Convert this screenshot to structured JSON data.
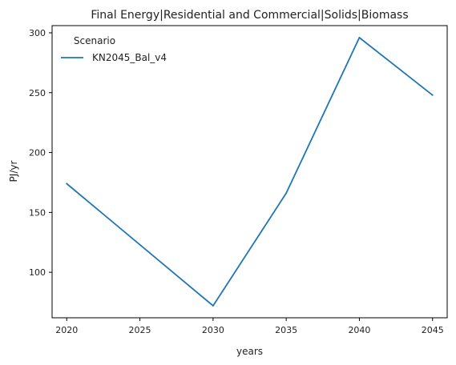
{
  "chart_data": {
    "type": "line",
    "title": "Final Energy|Residential and Commercial|Solids|Biomass",
    "xlabel": "years",
    "ylabel": "PJ/yr",
    "x": [
      2020,
      2030,
      2035,
      2040,
      2045
    ],
    "series": [
      {
        "name": "KN2045_Bal_v4",
        "color": "#1f77b4",
        "values": [
          174,
          72,
          166,
          296,
          248
        ]
      }
    ],
    "xticks": [
      2020,
      2025,
      2030,
      2035,
      2040,
      2045
    ],
    "yticks": [
      100,
      150,
      200,
      250,
      300
    ],
    "xlim": [
      2019,
      2046
    ],
    "ylim": [
      62,
      306
    ],
    "grid": false,
    "legend": {
      "title": "Scenario",
      "placement": "top-left"
    }
  }
}
